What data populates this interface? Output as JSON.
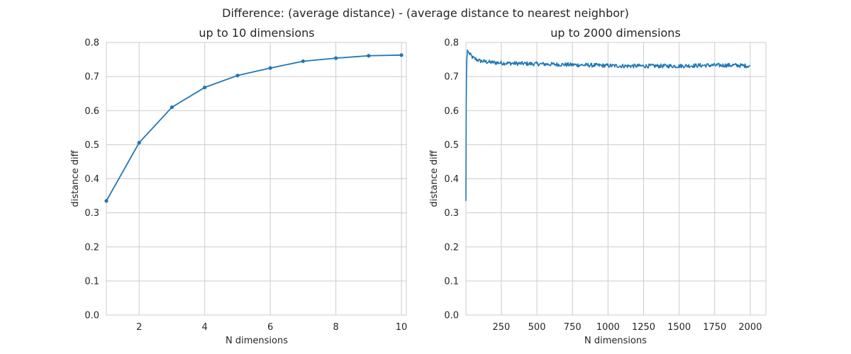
{
  "figure": {
    "title": "Difference: (average distance) - (average distance to nearest neighbor)"
  },
  "colors": {
    "series": "#1f77b4",
    "grid": "#cccccc",
    "text": "#262626",
    "background": "#ffffff"
  },
  "chart_data": [
    {
      "type": "line",
      "title": "up to 10 dimensions",
      "xlabel": "N dimensions",
      "ylabel": "distance diff",
      "xlim": [
        1,
        10.15
      ],
      "ylim": [
        0.0,
        0.8
      ],
      "x_ticks": [
        2,
        4,
        6,
        8,
        10
      ],
      "y_ticks": [
        0.0,
        0.1,
        0.2,
        0.3,
        0.4,
        0.5,
        0.6,
        0.7,
        0.8
      ],
      "grid": true,
      "markers": true,
      "series": [
        {
          "x": [
            1,
            2,
            3,
            4,
            5,
            6,
            7,
            8,
            9,
            10
          ],
          "values": [
            0.335,
            0.506,
            0.61,
            0.668,
            0.703,
            0.725,
            0.745,
            0.754,
            0.761,
            0.763
          ]
        }
      ]
    },
    {
      "type": "line",
      "title": "up to 2000 dimensions",
      "xlabel": "N dimensions",
      "ylabel": "distance diff",
      "xlim": [
        1,
        2110
      ],
      "ylim": [
        0.0,
        0.8
      ],
      "x_ticks": [
        250,
        500,
        750,
        1000,
        1250,
        1500,
        1750,
        2000
      ],
      "y_ticks": [
        0.0,
        0.1,
        0.2,
        0.3,
        0.4,
        0.5,
        0.6,
        0.7,
        0.8
      ],
      "grid": true,
      "markers": false,
      "noisy": true,
      "series": [
        {
          "x": [
            1,
            3,
            5,
            8,
            12,
            20,
            30,
            50,
            75,
            100,
            150,
            200,
            300,
            400,
            500,
            600,
            700,
            800,
            900,
            1000,
            1100,
            1200,
            1300,
            1400,
            1500,
            1600,
            1700,
            1800,
            1900,
            2000
          ],
          "values": [
            0.335,
            0.61,
            0.703,
            0.754,
            0.778,
            0.77,
            0.765,
            0.755,
            0.75,
            0.746,
            0.743,
            0.741,
            0.739,
            0.738,
            0.737,
            0.736,
            0.735,
            0.734,
            0.733,
            0.732,
            0.731,
            0.731,
            0.731,
            0.731,
            0.731,
            0.732,
            0.733,
            0.733,
            0.733,
            0.731
          ]
        }
      ]
    }
  ]
}
